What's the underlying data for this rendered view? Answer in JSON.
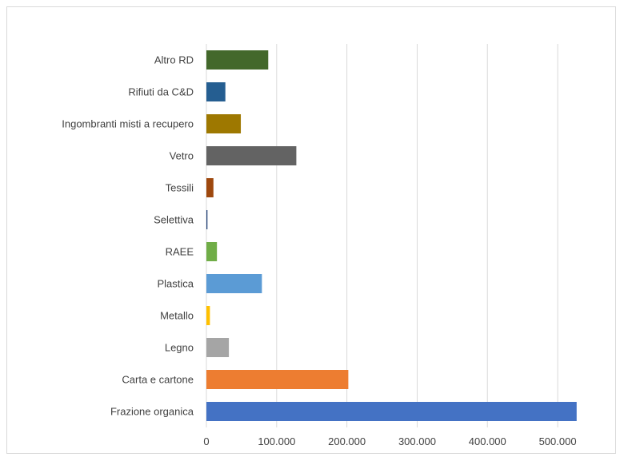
{
  "chart_data": {
    "type": "bar",
    "orientation": "horizontal",
    "title": "",
    "xlabel": "",
    "ylabel": "",
    "xlim": [
      0,
      550000
    ],
    "x_ticks": [
      "0",
      "100.000",
      "200.000",
      "300.000",
      "400.000",
      "500.000"
    ],
    "x_tick_values": [
      0,
      100000,
      200000,
      300000,
      400000,
      500000
    ],
    "grid": "vertical",
    "legend": "none",
    "categories": [
      "Altro RD",
      "Rifiuti da C&D",
      "Ingombranti misti a recupero",
      "Vetro",
      "Tessili",
      "Selettiva",
      "RAEE",
      "Plastica",
      "Metallo",
      "Legno",
      "Carta e cartone",
      "Frazione organica"
    ],
    "values": [
      88000,
      27000,
      49000,
      128000,
      10000,
      1500,
      15000,
      79000,
      5000,
      32000,
      202000,
      527000
    ],
    "colors": [
      "#43682b",
      "#255e91",
      "#9e7800",
      "#636363",
      "#9e480e",
      "#264478",
      "#70ad47",
      "#5b9bd5",
      "#ffc000",
      "#a5a5a5",
      "#ed7d31",
      "#4472c4"
    ]
  }
}
